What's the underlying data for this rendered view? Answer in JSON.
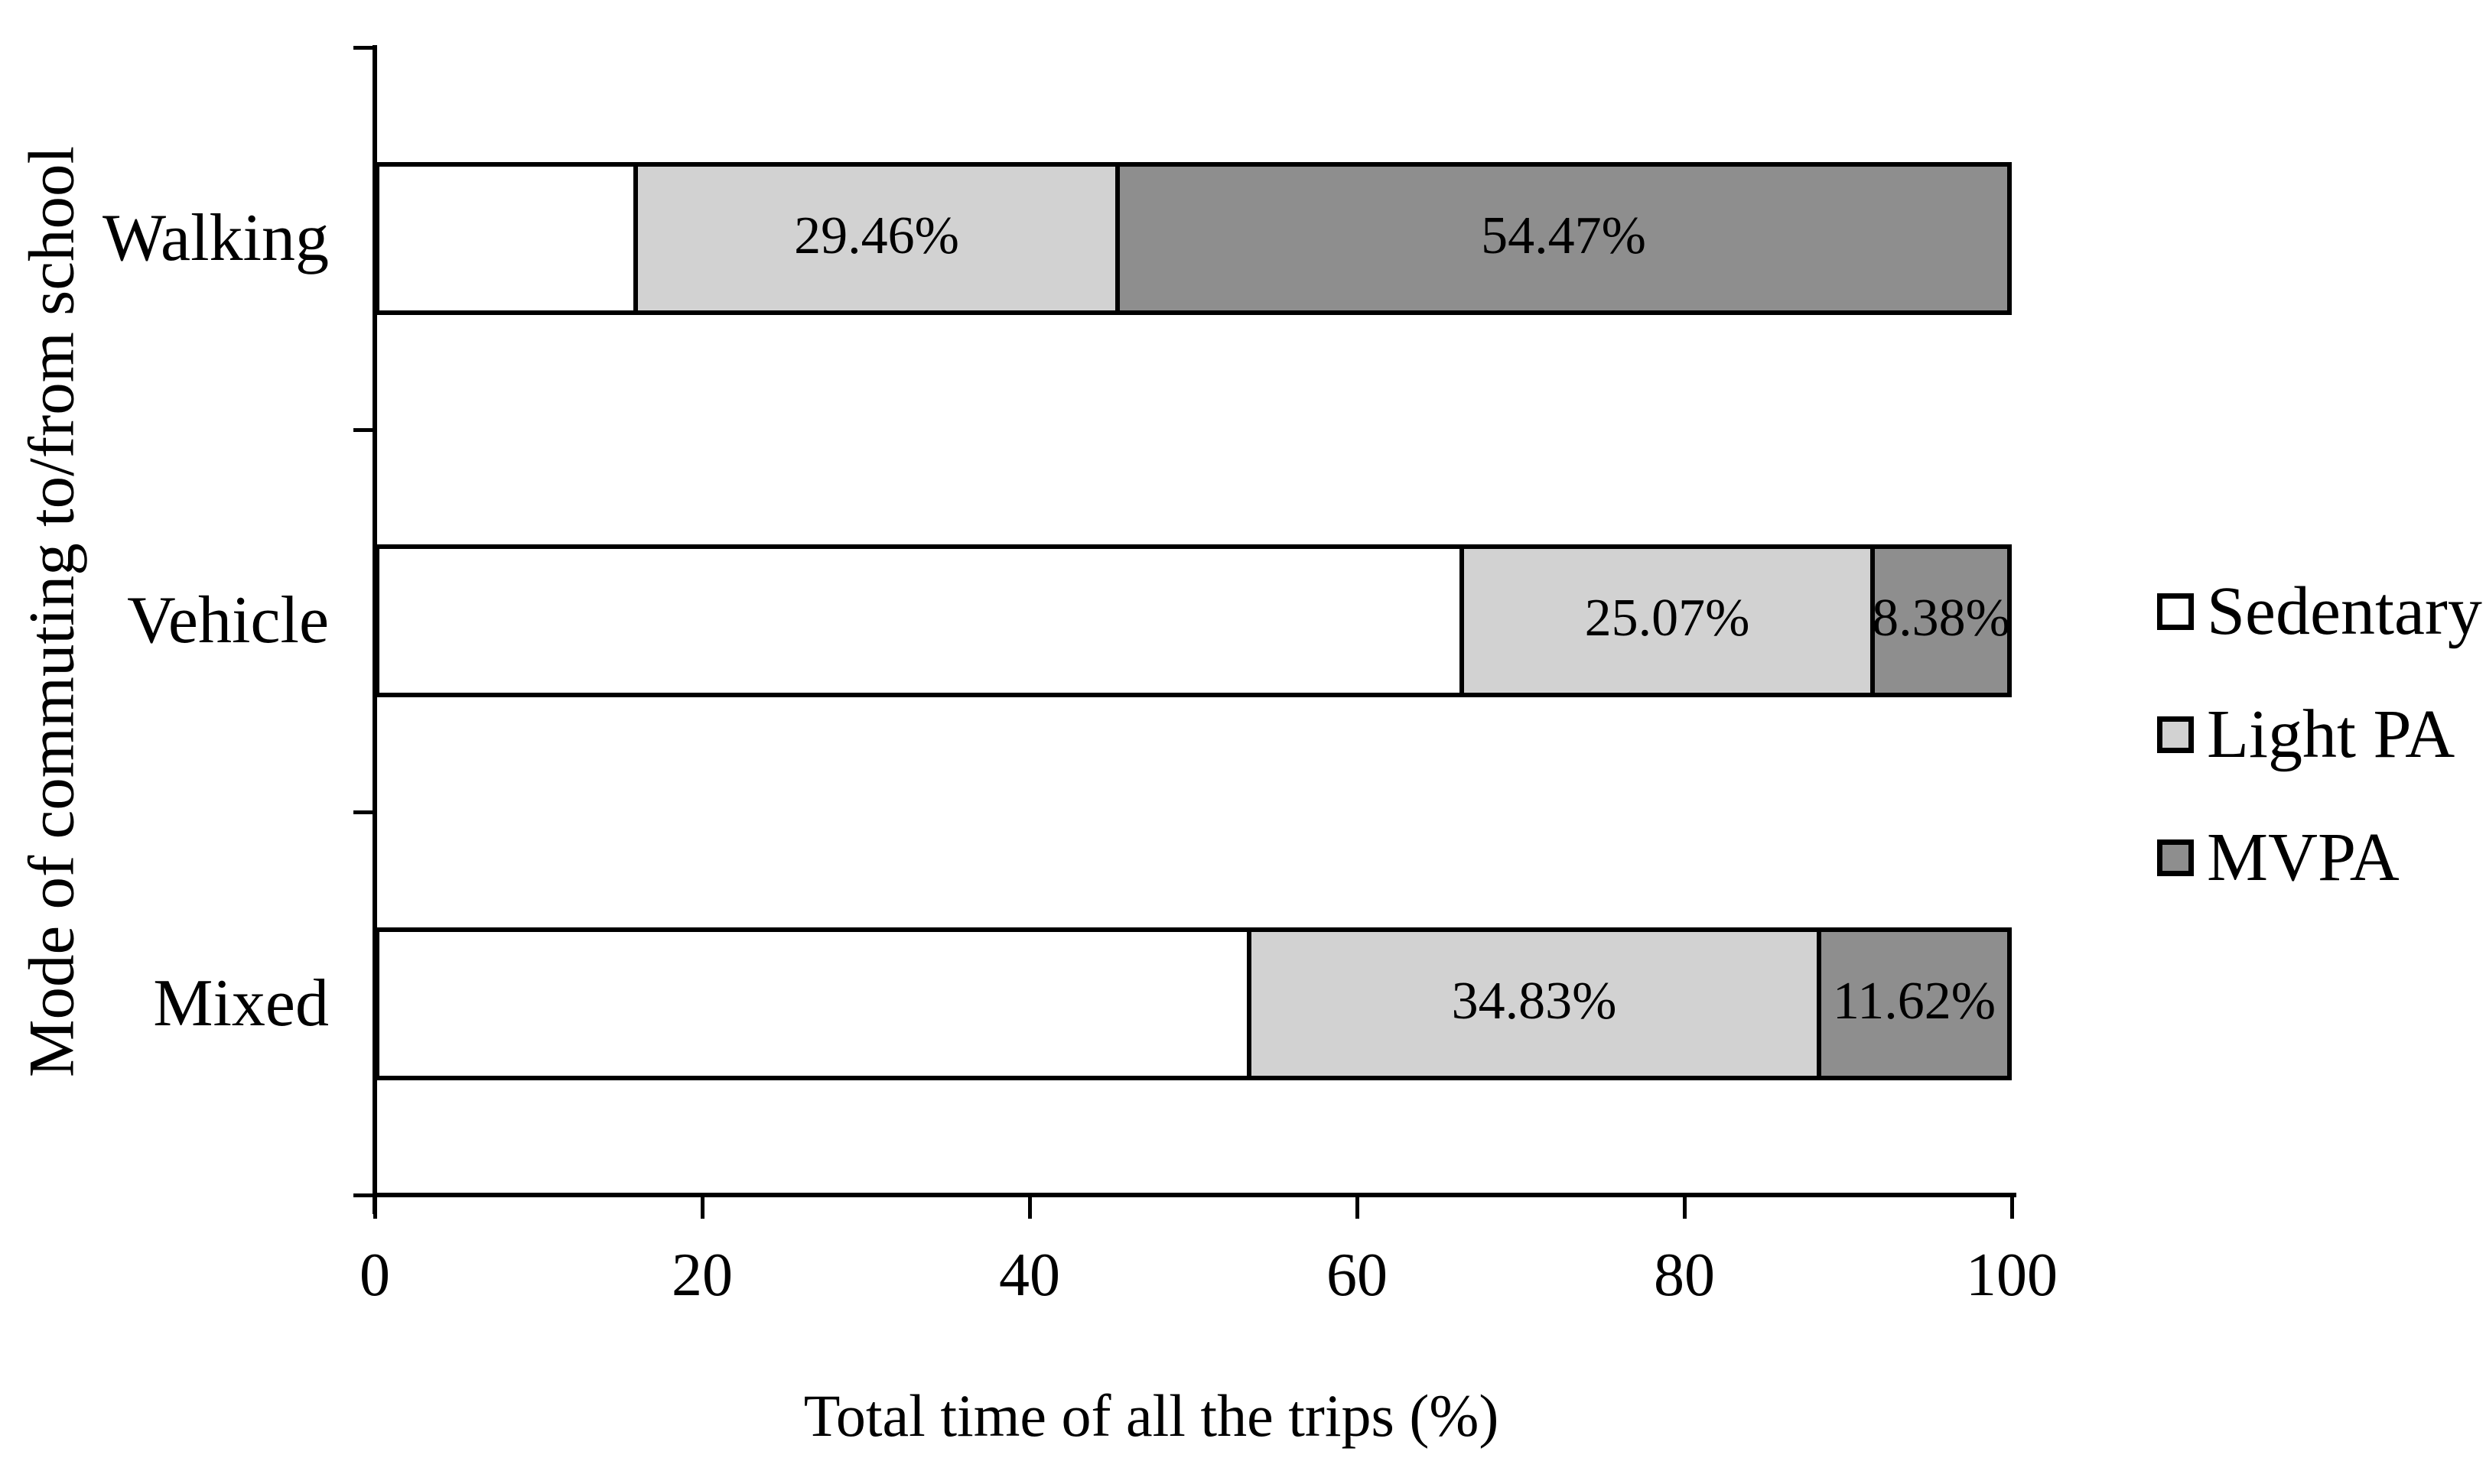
{
  "figure": {
    "x_axis_title": "Total time of all the trips (%)",
    "y_axis_title": "Mode of commuting to/from school"
  },
  "legend": {
    "items": [
      {
        "label": "Sedentary",
        "color": "#ffffff"
      },
      {
        "label": "Light PA",
        "color": "#d2d2d2"
      },
      {
        "label": "MVPA",
        "color": "#8e8e8e"
      }
    ]
  },
  "colors": {
    "axis": "#000000",
    "bar_border": "#000000",
    "label_text": "#000000",
    "background": "#ffffff"
  },
  "chart_data": {
    "type": "bar",
    "orientation": "horizontal",
    "stacked": true,
    "title": "",
    "xlabel": "Total time of all the trips (%)",
    "ylabel": "Mode of commuting to/from school",
    "xlim": [
      0,
      100
    ],
    "x_ticks": [
      "0",
      "20",
      "40",
      "60",
      "80",
      "100"
    ],
    "grid": false,
    "legend_position": "right",
    "categories": [
      "Walking",
      "Vehicle",
      "Mixed"
    ],
    "series": [
      {
        "name": "Sedentary",
        "color": "#ffffff",
        "values": [
          16.07,
          66.55,
          53.55
        ],
        "labels": [
          null,
          null,
          null
        ]
      },
      {
        "name": "Light PA",
        "color": "#d2d2d2",
        "values": [
          29.46,
          25.07,
          34.83
        ],
        "labels": [
          "29.46%",
          "25.07%",
          "34.83%"
        ]
      },
      {
        "name": "MVPA",
        "color": "#8e8e8e",
        "values": [
          54.47,
          8.38,
          11.62
        ],
        "labels": [
          "54.47%",
          "8.38%",
          "11.62%"
        ]
      }
    ]
  }
}
